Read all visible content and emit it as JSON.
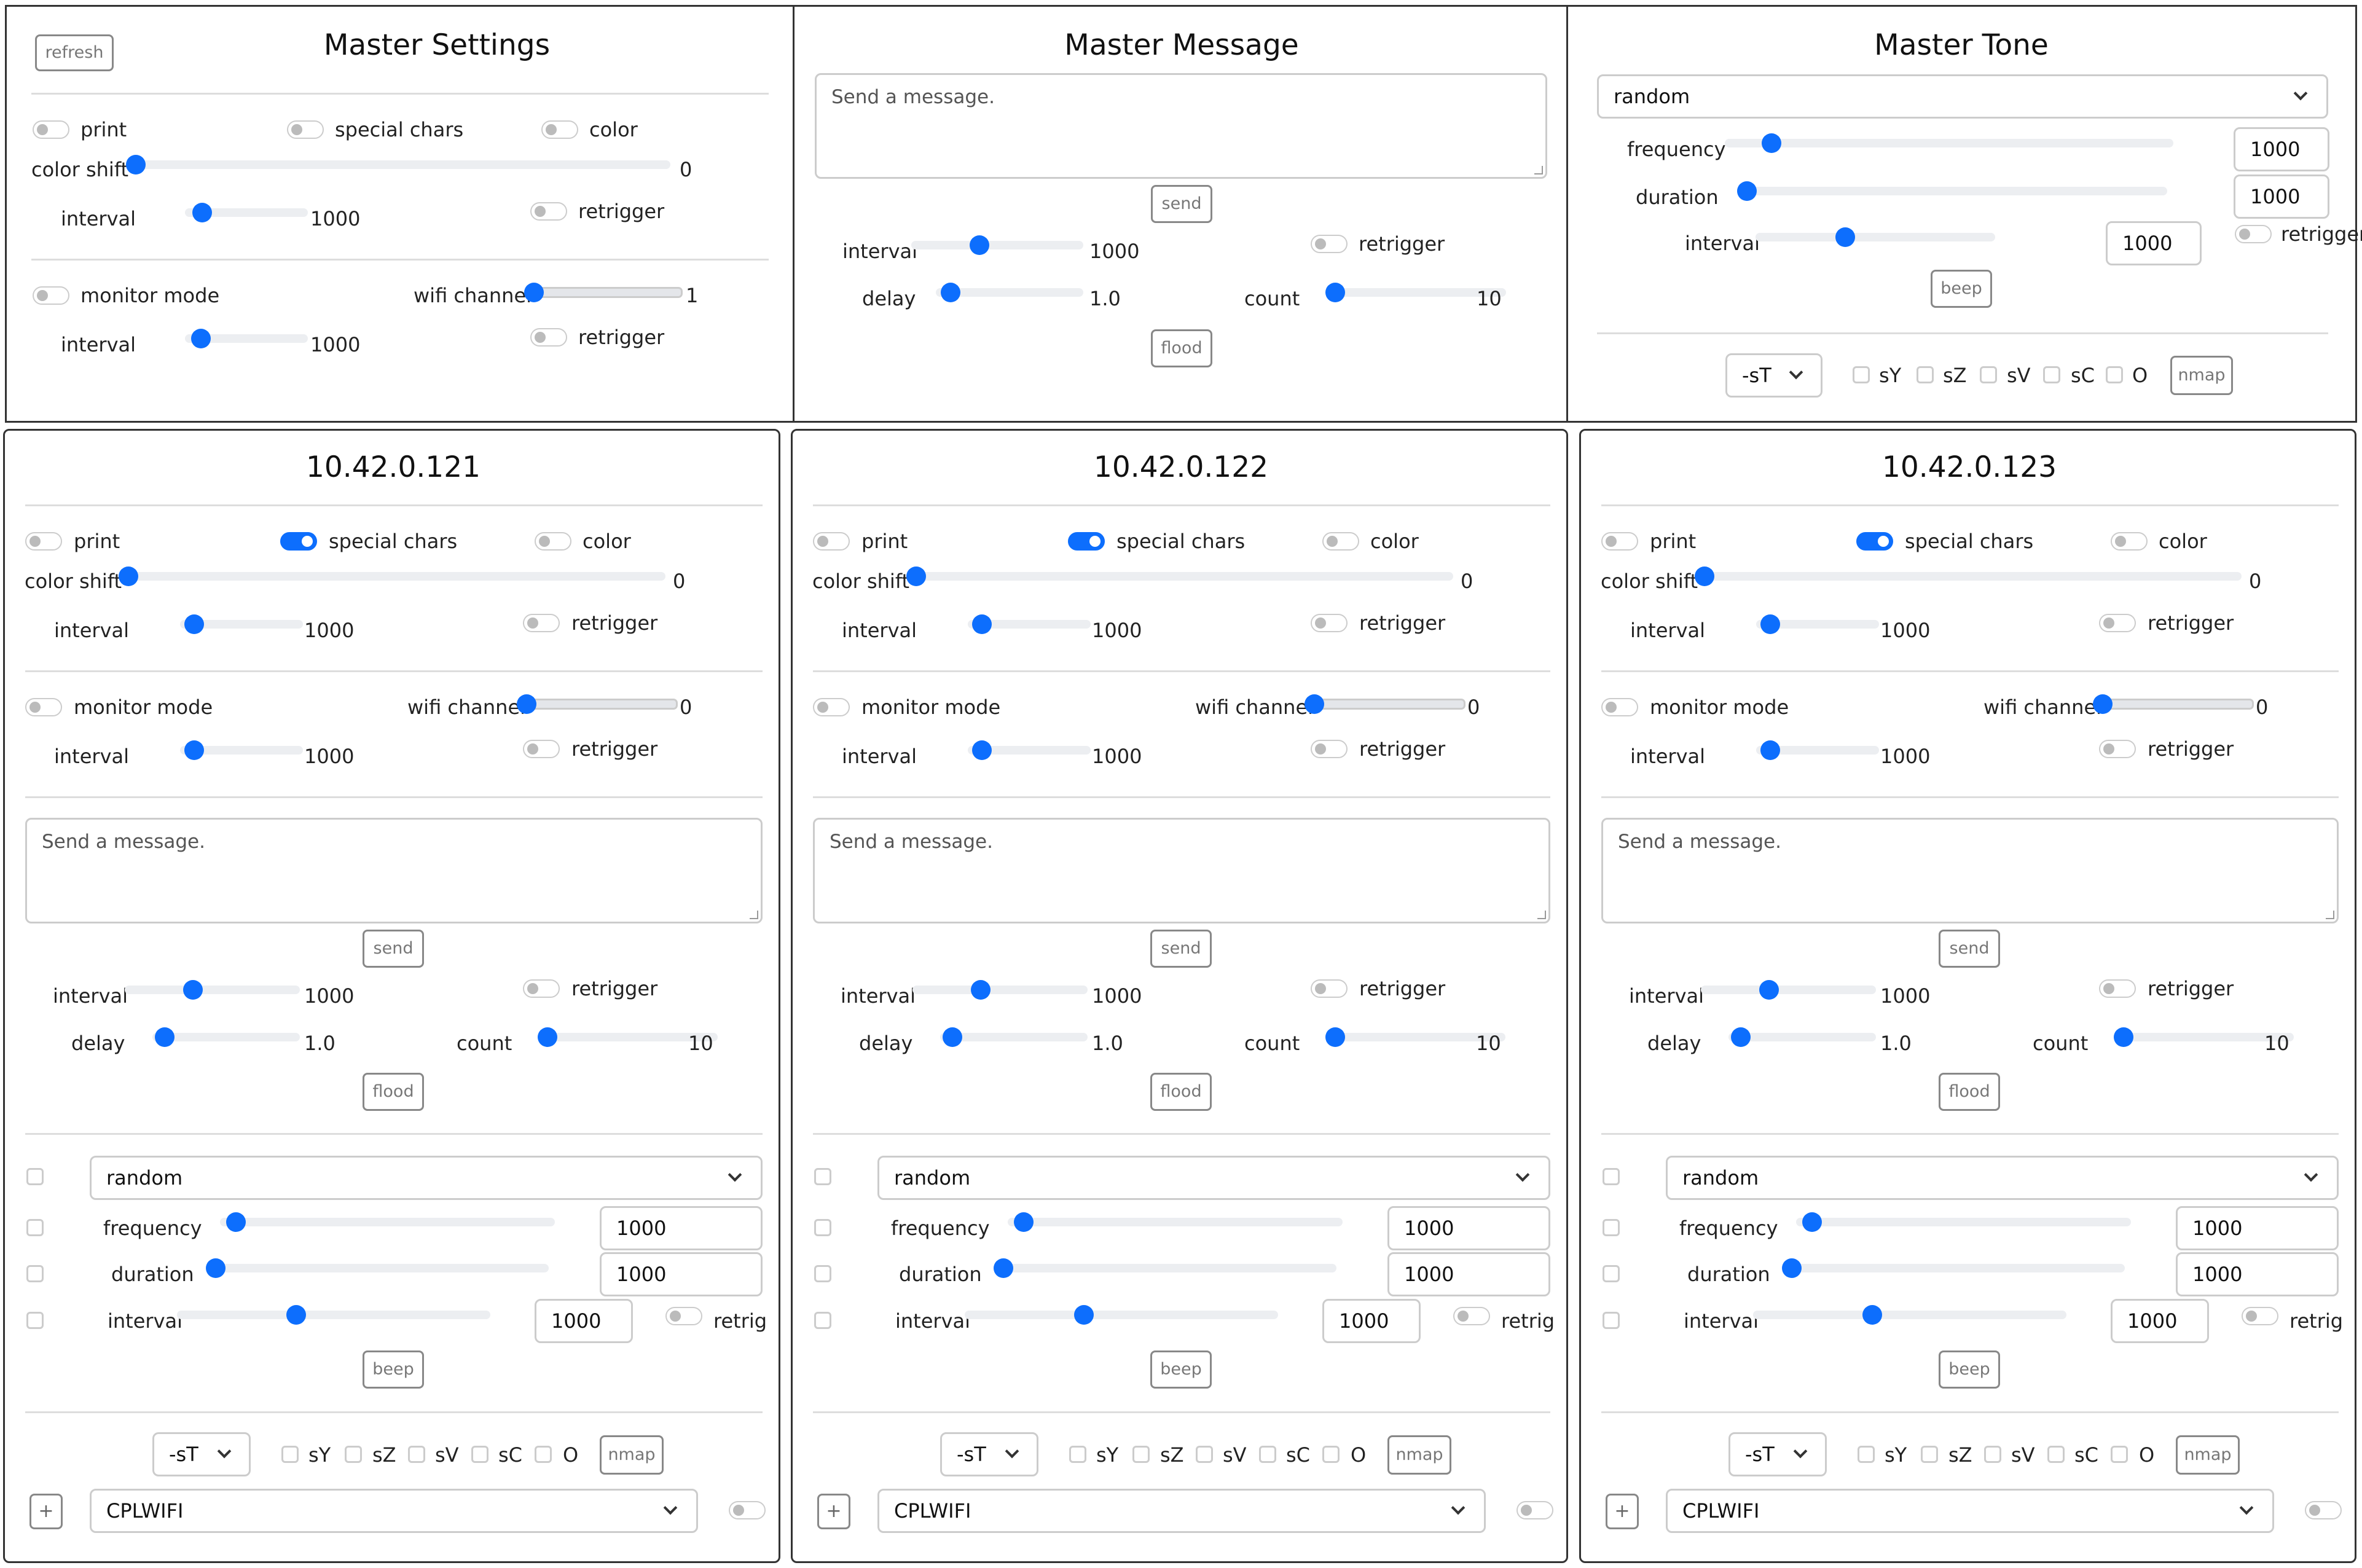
{
  "master_settings": {
    "title": "Master Settings",
    "refresh_label": "refresh",
    "print_label": "print",
    "special_chars_label": "special chars",
    "color_label": "color",
    "color_shift_label": "color shift",
    "color_shift_value": "0",
    "interval_label": "interval",
    "interval_value": "1000",
    "retrigger_label": "retrigger",
    "monitor_mode_label": "monitor mode",
    "wifi_channel_label": "wifi channel",
    "wifi_channel_value": "1",
    "interval2_label": "interval",
    "interval2_value": "1000",
    "retrigger2_label": "retrigger"
  },
  "master_message": {
    "title": "Master Message",
    "placeholder": "Send a message.",
    "send_label": "send",
    "interval_label": "interval",
    "interval_value": "1000",
    "retrigger_label": "retrigger",
    "delay_label": "delay",
    "delay_value": "1.0",
    "count_label": "count",
    "count_value": "10",
    "flood_label": "flood"
  },
  "master_tone": {
    "title": "Master Tone",
    "waveform_value": "random",
    "frequency_label": "frequency",
    "frequency_value": "1000",
    "duration_label": "duration",
    "duration_value": "1000",
    "interval_label": "interval",
    "interval_value": "1000",
    "retrigger_label": "retrigger",
    "beep_label": "beep",
    "scan_type_value": "-sT",
    "opt_sy": "sY",
    "opt_sz": "sZ",
    "opt_sv": "sV",
    "opt_sc": "sC",
    "opt_o": "O",
    "nmap_label": "nmap"
  },
  "devices": [
    {
      "title": "10.42.0.121",
      "print_label": "print",
      "special_chars_label": "special chars",
      "color_label": "color",
      "color_shift_label": "color shift",
      "color_shift_value": "0",
      "interval_label": "interval",
      "interval_value": "1000",
      "retrigger_label": "retrigger",
      "monitor_mode_label": "monitor mode",
      "wifi_channel_label": "wifi channel",
      "wifi_channel_value": "0",
      "interval2_label": "interval",
      "interval2_value": "1000",
      "retrigger2_label": "retrigger",
      "message_placeholder": "Send a message.",
      "send_label": "send",
      "msg_interval_label": "interval",
      "msg_interval_value": "1000",
      "msg_retrigger_label": "retrigger",
      "delay_label": "delay",
      "delay_value": "1.0",
      "count_label": "count",
      "count_value": "10",
      "flood_label": "flood",
      "waveform_value": "random",
      "frequency_label": "frequency",
      "frequency_value": "1000",
      "duration_label": "duration",
      "duration_value": "1000",
      "tone_interval_label": "interval",
      "tone_interval_value": "1000",
      "retrig_label": "retrig",
      "beep_label": "beep",
      "scan_type_value": "-sT",
      "opt_sy": "sY",
      "opt_sz": "sZ",
      "opt_sv": "sV",
      "opt_sc": "sC",
      "opt_o": "O",
      "nmap_label": "nmap",
      "plus_label": "+",
      "network_value": "CPLWIFI"
    },
    {
      "title": "10.42.0.122",
      "print_label": "print",
      "special_chars_label": "special chars",
      "color_label": "color",
      "color_shift_label": "color shift",
      "color_shift_value": "0",
      "interval_label": "interval",
      "interval_value": "1000",
      "retrigger_label": "retrigger",
      "monitor_mode_label": "monitor mode",
      "wifi_channel_label": "wifi channel",
      "wifi_channel_value": "0",
      "interval2_label": "interval",
      "interval2_value": "1000",
      "retrigger2_label": "retrigger",
      "message_placeholder": "Send a message.",
      "send_label": "send",
      "msg_interval_label": "interval",
      "msg_interval_value": "1000",
      "msg_retrigger_label": "retrigger",
      "delay_label": "delay",
      "delay_value": "1.0",
      "count_label": "count",
      "count_value": "10",
      "flood_label": "flood",
      "waveform_value": "random",
      "frequency_label": "frequency",
      "frequency_value": "1000",
      "duration_label": "duration",
      "duration_value": "1000",
      "tone_interval_label": "interval",
      "tone_interval_value": "1000",
      "retrig_label": "retrig",
      "beep_label": "beep",
      "scan_type_value": "-sT",
      "opt_sy": "sY",
      "opt_sz": "sZ",
      "opt_sv": "sV",
      "opt_sc": "sC",
      "opt_o": "O",
      "nmap_label": "nmap",
      "plus_label": "+",
      "network_value": "CPLWIFI"
    },
    {
      "title": "10.42.0.123",
      "print_label": "print",
      "special_chars_label": "special chars",
      "color_label": "color",
      "color_shift_label": "color shift",
      "color_shift_value": "0",
      "interval_label": "interval",
      "interval_value": "1000",
      "retrigger_label": "retrigger",
      "monitor_mode_label": "monitor mode",
      "wifi_channel_label": "wifi channel",
      "wifi_channel_value": "0",
      "interval2_label": "interval",
      "interval2_value": "1000",
      "retrigger2_label": "retrigger",
      "message_placeholder": "Send a message.",
      "send_label": "send",
      "msg_interval_label": "interval",
      "msg_interval_value": "1000",
      "msg_retrigger_label": "retrigger",
      "delay_label": "delay",
      "delay_value": "1.0",
      "count_label": "count",
      "count_value": "10",
      "flood_label": "flood",
      "waveform_value": "random",
      "frequency_label": "frequency",
      "frequency_value": "1000",
      "duration_label": "duration",
      "duration_value": "1000",
      "tone_interval_label": "interval",
      "tone_interval_value": "1000",
      "retrig_label": "retrig",
      "beep_label": "beep",
      "scan_type_value": "-sT",
      "opt_sy": "sY",
      "opt_sz": "sZ",
      "opt_sv": "sV",
      "opt_sc": "sC",
      "opt_o": "O",
      "nmap_label": "nmap",
      "plus_label": "+",
      "network_value": "CPLWIFI"
    }
  ]
}
